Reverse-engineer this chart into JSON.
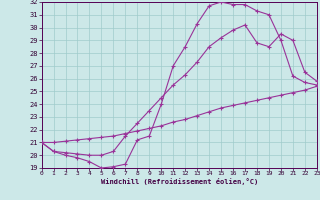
{
  "xlabel": "Windchill (Refroidissement éolien,°C)",
  "xlim": [
    0,
    23
  ],
  "ylim": [
    19,
    32
  ],
  "yticks": [
    19,
    20,
    21,
    22,
    23,
    24,
    25,
    26,
    27,
    28,
    29,
    30,
    31,
    32
  ],
  "xticks": [
    0,
    1,
    2,
    3,
    4,
    5,
    6,
    7,
    8,
    9,
    10,
    11,
    12,
    13,
    14,
    15,
    16,
    17,
    18,
    19,
    20,
    21,
    22,
    23
  ],
  "bg_color": "#cce8e8",
  "grid_color": "#a0cccc",
  "line_color": "#993399",
  "curve1_x": [
    0,
    1,
    2,
    3,
    4,
    5,
    6,
    7,
    8,
    9,
    10,
    11,
    12,
    13,
    14,
    15,
    16,
    17,
    18,
    19,
    20,
    21,
    22,
    23
  ],
  "curve1_y": [
    21.0,
    20.3,
    20.0,
    19.8,
    19.5,
    19.0,
    19.1,
    19.3,
    21.2,
    21.5,
    24.0,
    27.0,
    28.5,
    30.3,
    31.7,
    32.0,
    31.8,
    31.8,
    31.3,
    31.0,
    29.0,
    26.2,
    25.7,
    25.5
  ],
  "curve2_x": [
    0,
    1,
    2,
    3,
    4,
    5,
    6,
    7,
    8,
    9,
    10,
    11,
    12,
    13,
    14,
    15,
    16,
    17,
    18,
    19,
    20,
    21,
    22,
    23
  ],
  "curve2_y": [
    21.0,
    20.3,
    20.2,
    20.1,
    20.0,
    20.0,
    20.3,
    21.5,
    22.5,
    23.5,
    24.5,
    25.5,
    26.3,
    27.3,
    28.5,
    29.2,
    29.8,
    30.2,
    28.8,
    28.5,
    29.5,
    29.0,
    26.5,
    25.8
  ],
  "curve3_x": [
    0,
    1,
    2,
    3,
    4,
    5,
    6,
    7,
    8,
    9,
    10,
    11,
    12,
    13,
    14,
    15,
    16,
    17,
    18,
    19,
    20,
    21,
    22,
    23
  ],
  "curve3_y": [
    21.0,
    21.0,
    21.1,
    21.2,
    21.3,
    21.4,
    21.5,
    21.7,
    21.9,
    22.1,
    22.3,
    22.6,
    22.8,
    23.1,
    23.4,
    23.7,
    23.9,
    24.1,
    24.3,
    24.5,
    24.7,
    24.9,
    25.1,
    25.4
  ]
}
